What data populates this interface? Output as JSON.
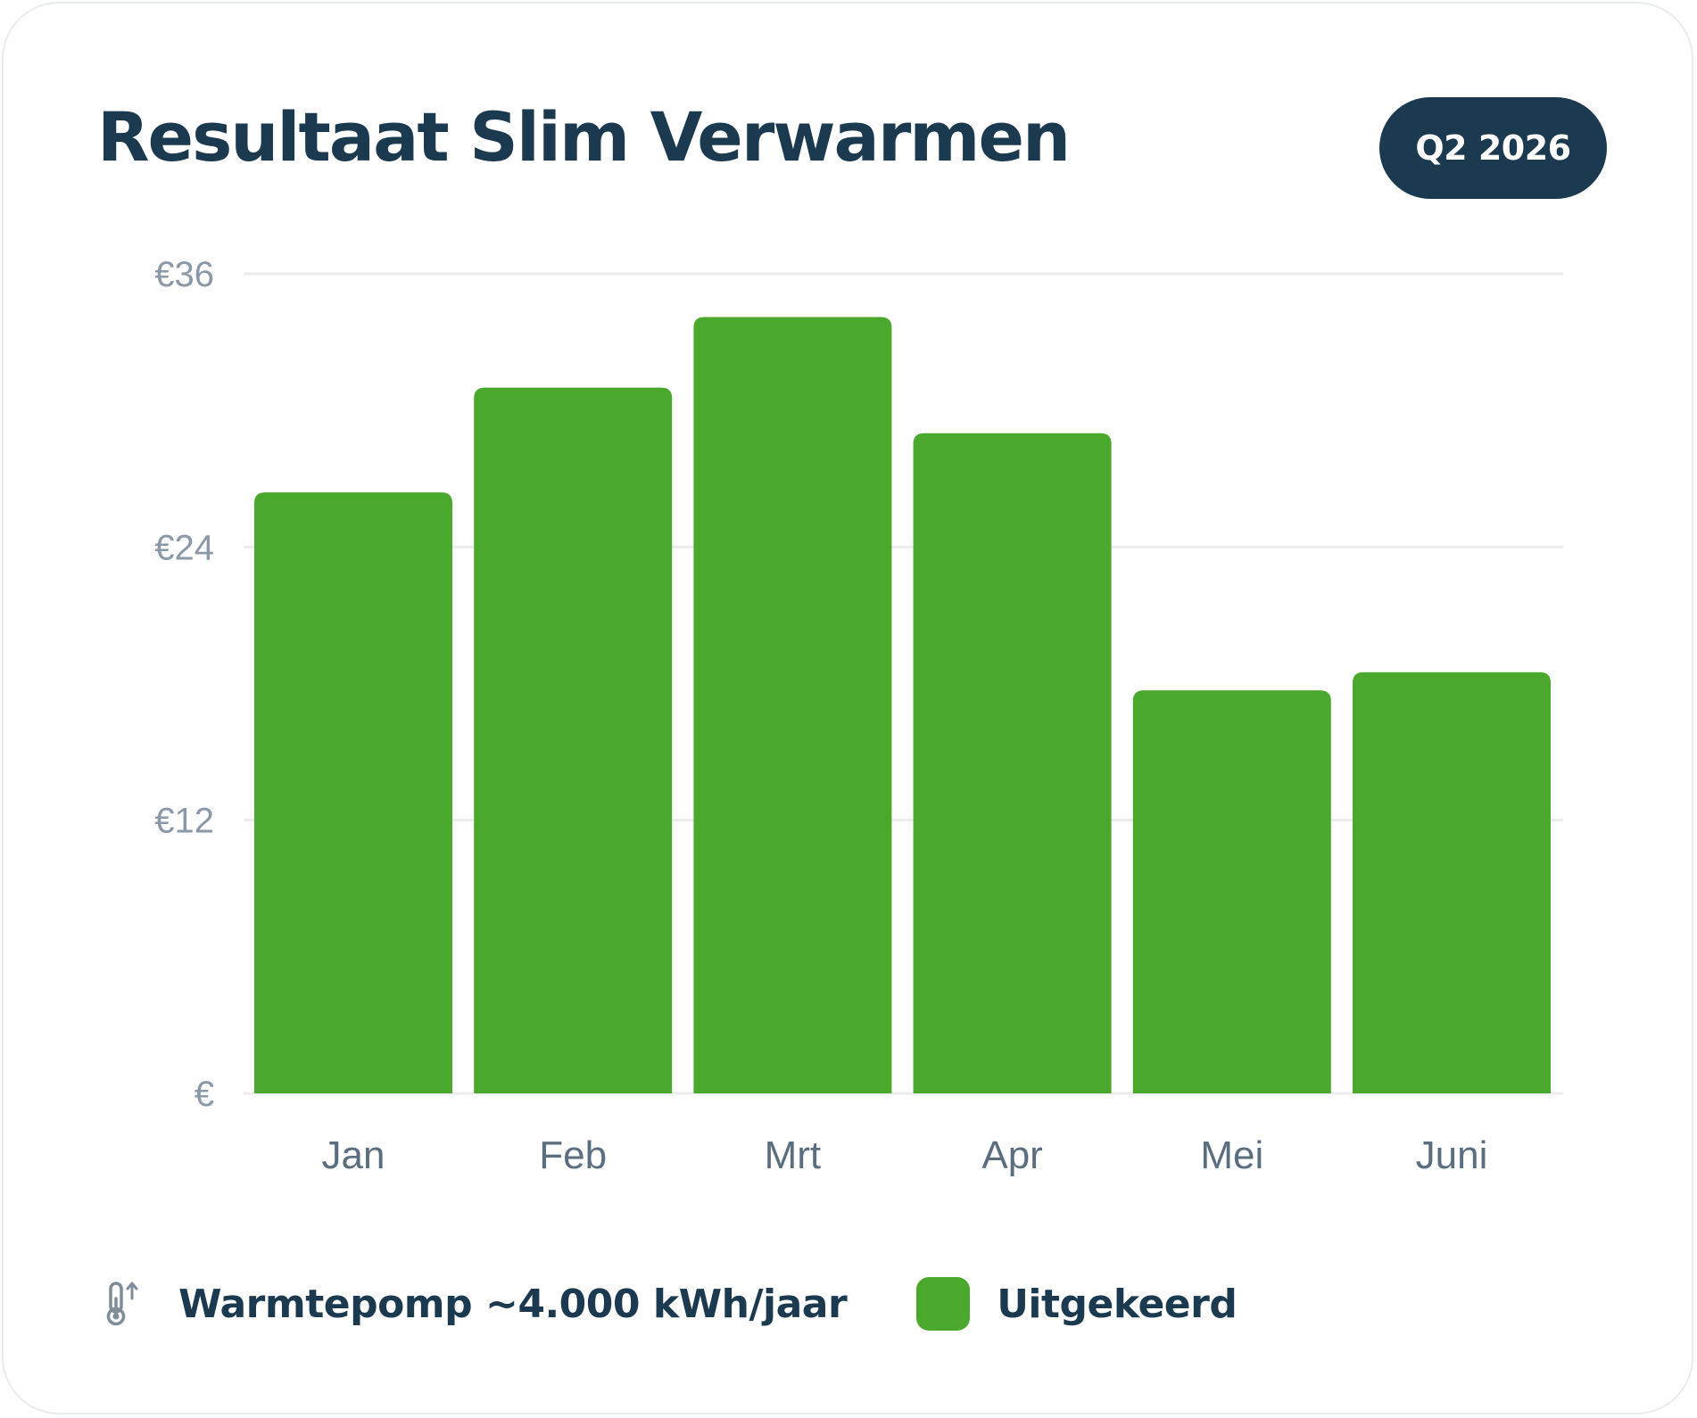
{
  "card": {
    "title": "Resultaat Slim Verwarmen",
    "period": "Q2 2026"
  },
  "legend": {
    "info_icon": "thermometer-up-icon",
    "info_text": "Warmtepomp ~4.000 kWh/jaar",
    "series_label": "Uitgekeerd"
  },
  "colors": {
    "bar": "#4aa82d",
    "title": "#1b3a4f",
    "badge": "#1b3a4f",
    "grid": "#ececec",
    "tick": "#8a98a8",
    "category": "#5b6e80"
  },
  "chart_data": {
    "type": "bar",
    "title": "Resultaat Slim Verwarmen",
    "xlabel": "",
    "ylabel": "",
    "categories": [
      "Jan",
      "Feb",
      "Mrt",
      "Apr",
      "Mei",
      "Juni"
    ],
    "series": [
      {
        "name": "Uitgekeerd",
        "values": [
          26.4,
          31.0,
          34.1,
          29.0,
          17.7,
          18.5
        ]
      }
    ],
    "ylim": [
      0,
      36
    ],
    "yticks": [
      0,
      12,
      24,
      36
    ],
    "ytick_labels": [
      "€",
      "€12",
      "€24",
      "€36"
    ],
    "grid": true,
    "legend": "bottom-left"
  }
}
